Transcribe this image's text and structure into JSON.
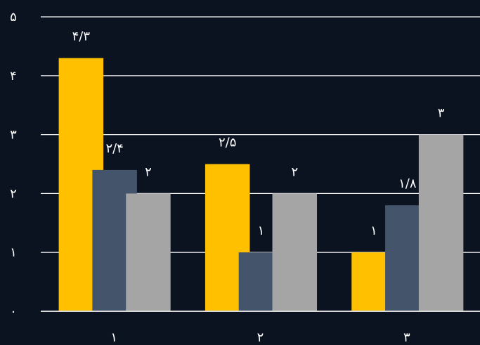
{
  "chart_data": {
    "type": "bar",
    "categories": [
      "۱",
      "۲",
      "۳"
    ],
    "series": [
      {
        "values": [
          4.3,
          2.5,
          1.0
        ],
        "labels": [
          "۴/۳",
          "۲/۵",
          "۱"
        ],
        "color": "#ffc000"
      },
      {
        "values": [
          2.4,
          1.0,
          1.8
        ],
        "labels": [
          "۲/۴",
          "۱",
          "۱/۸"
        ],
        "color": "#44546a"
      },
      {
        "values": [
          2.0,
          2.0,
          3.0
        ],
        "labels": [
          "۲",
          "۲",
          "۳"
        ],
        "color": "#a5a5a5"
      }
    ],
    "ylim": [
      0,
      5
    ],
    "yticks": [
      0,
      1,
      2,
      3,
      4,
      5
    ],
    "ytick_labels": [
      "۰",
      "۱",
      "۲",
      "۳",
      "۴",
      "۵"
    ],
    "grid": true,
    "legend": false,
    "title": "",
    "xlabel": "",
    "ylabel": ""
  },
  "colors": {
    "background": "#0b1220",
    "gridline": "#ffffff",
    "axis": "#d9d9d9",
    "text": "#ffffff"
  }
}
